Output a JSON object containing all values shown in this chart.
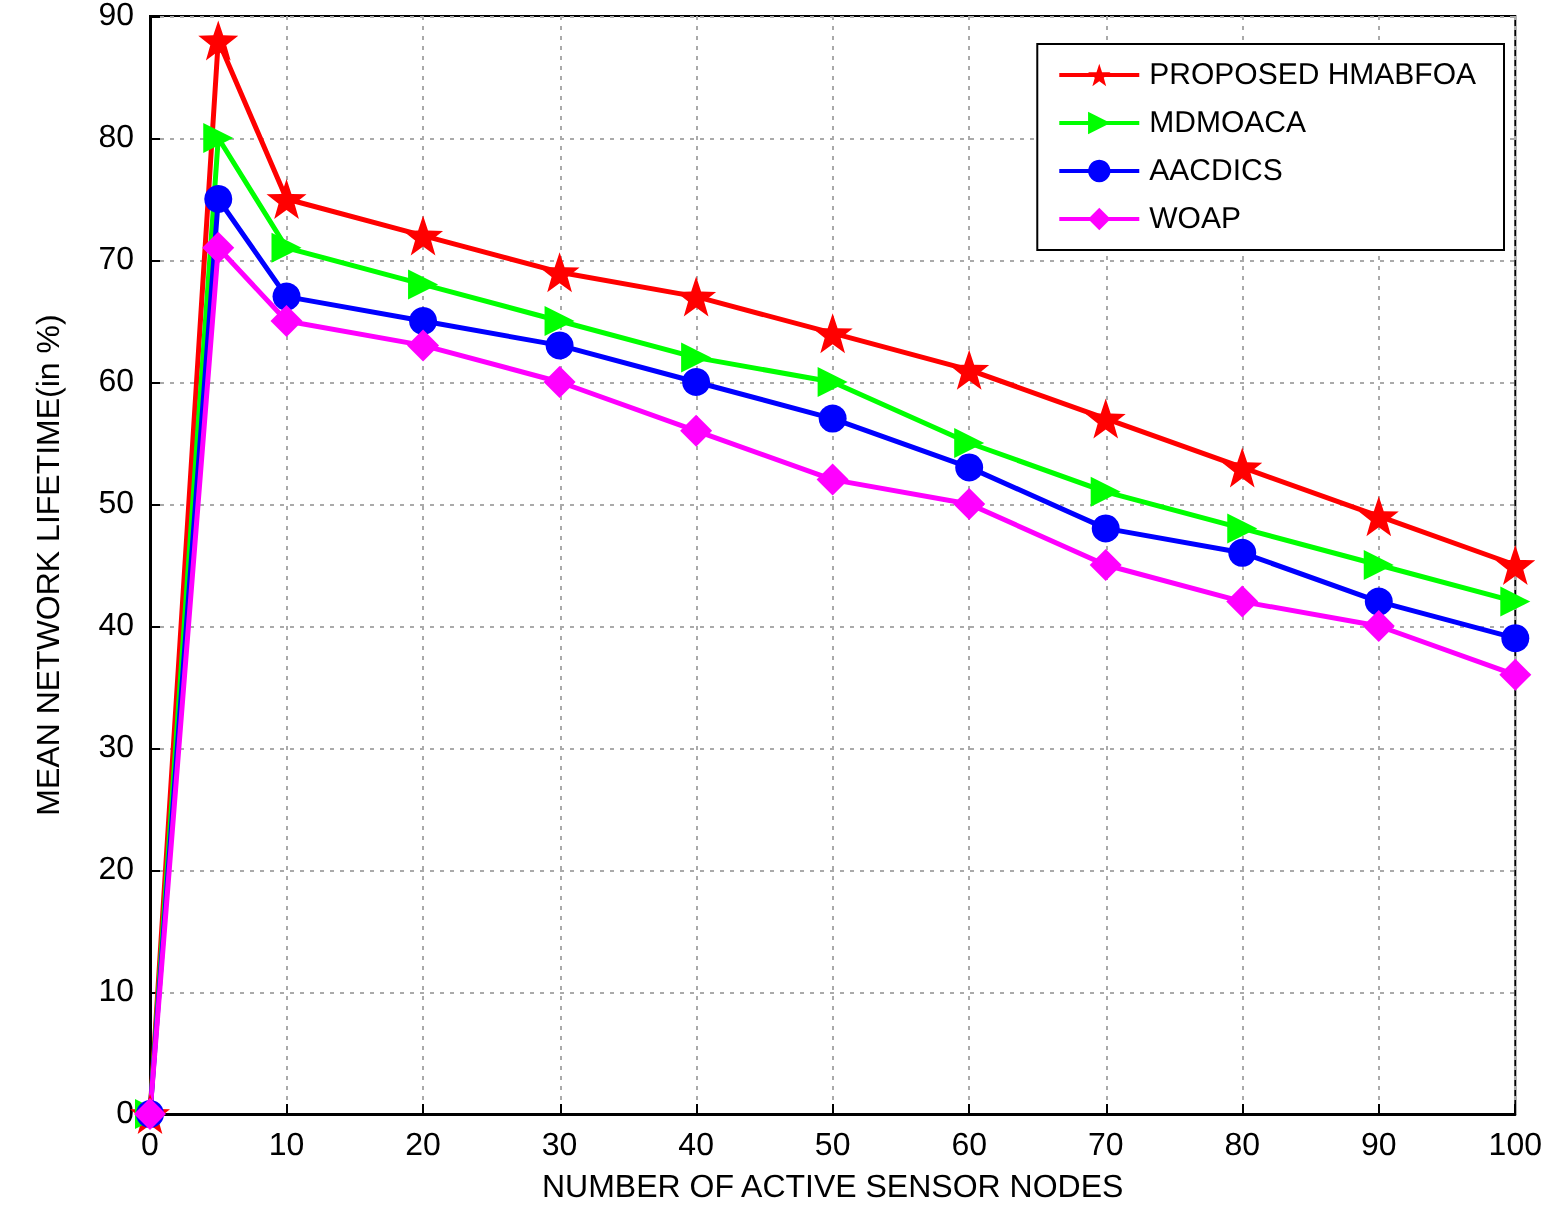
{
  "chart_data": {
    "type": "line",
    "xlabel": "NUMBER OF ACTIVE SENSOR NODES",
    "ylabel": "MEAN NETWORK LIFETIME(in %)",
    "x": [
      0,
      5,
      10,
      20,
      30,
      40,
      50,
      60,
      70,
      80,
      90,
      100
    ],
    "series": [
      {
        "name": "PROPOSED HMABFOA",
        "color": "#ff0000",
        "marker": "star",
        "values": [
          0,
          88,
          75,
          72,
          69,
          67,
          64,
          61,
          57,
          53,
          49,
          45
        ]
      },
      {
        "name": "MDMOACA",
        "color": "#00ff00",
        "marker": "triangle",
        "values": [
          0,
          80,
          71,
          68,
          65,
          62,
          60,
          55,
          51,
          48,
          45,
          42
        ]
      },
      {
        "name": "AACDICS",
        "color": "#0000ff",
        "marker": "circle",
        "values": [
          0,
          75,
          67,
          65,
          63,
          60,
          57,
          53,
          48,
          46,
          42,
          39
        ]
      },
      {
        "name": "WOAP",
        "color": "#ff00ff",
        "marker": "diamond",
        "values": [
          0,
          71,
          65,
          63,
          60,
          56,
          52,
          50,
          45,
          42,
          40,
          36
        ]
      }
    ],
    "xlim": [
      0,
      100
    ],
    "xticks": [
      0,
      10,
      20,
      30,
      40,
      50,
      60,
      70,
      80,
      90,
      100
    ],
    "ylim": [
      0,
      90
    ],
    "yticks": [
      0,
      10,
      20,
      30,
      40,
      50,
      60,
      70,
      80,
      90
    ],
    "grid": true,
    "legend": "top right",
    "line_style": "solid"
  }
}
